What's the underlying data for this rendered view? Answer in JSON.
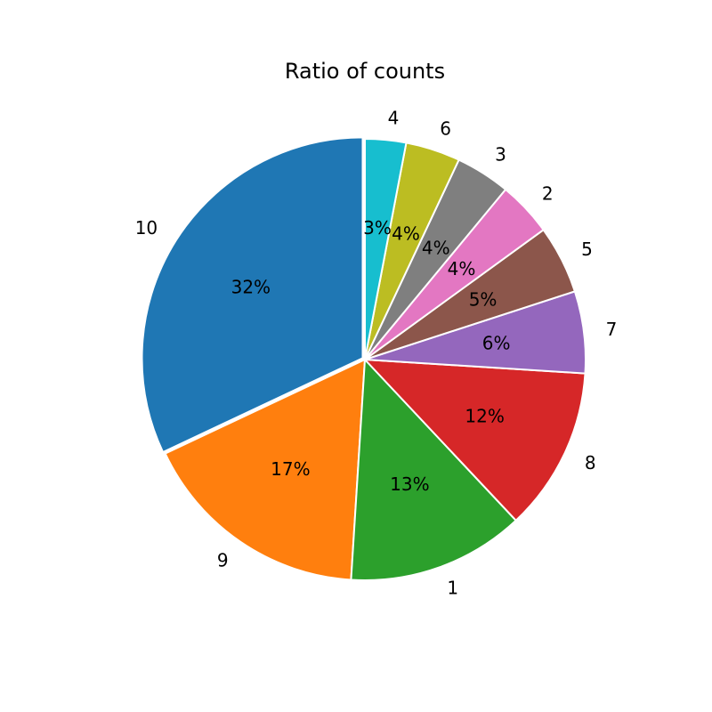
{
  "chart_data": {
    "type": "pie",
    "title": "Ratio of counts",
    "start_angle_deg": 90,
    "direction": "counterclockwise",
    "explode_first": true,
    "slices": [
      {
        "label": "10",
        "value": 32,
        "pct_label": "32%",
        "color": "#1f77b4"
      },
      {
        "label": "9",
        "value": 17,
        "pct_label": "17%",
        "color": "#ff7f0e"
      },
      {
        "label": "1",
        "value": 13,
        "pct_label": "13%",
        "color": "#2ca02c"
      },
      {
        "label": "8",
        "value": 12,
        "pct_label": "12%",
        "color": "#d62728"
      },
      {
        "label": "7",
        "value": 6,
        "pct_label": "6%",
        "color": "#9467bd"
      },
      {
        "label": "5",
        "value": 5,
        "pct_label": "5%",
        "color": "#8c564b"
      },
      {
        "label": "2",
        "value": 4,
        "pct_label": "4%",
        "color": "#e377c2"
      },
      {
        "label": "3",
        "value": 4,
        "pct_label": "4%",
        "color": "#7f7f7f"
      },
      {
        "label": "6",
        "value": 4,
        "pct_label": "4%",
        "color": "#bcbd22"
      },
      {
        "label": "4",
        "value": 3,
        "pct_label": "3%",
        "color": "#17becf"
      }
    ]
  }
}
